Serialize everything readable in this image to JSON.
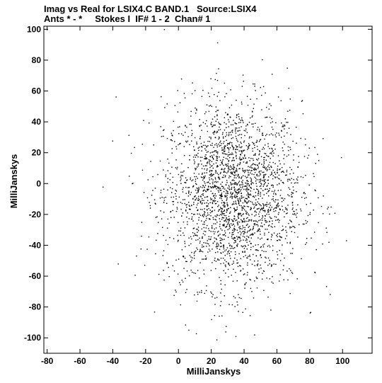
{
  "chart_data": {
    "type": "scatter",
    "title_lines": [
      "Imag vs Real for LSIX4.C BAND.1   Source:LSIX4",
      "Ants * - *     Stokes I  IF# 1 - 2  Chan# 1"
    ],
    "xlabel": "MilliJanskys",
    "ylabel": "MilliJanskys",
    "xlim": [
      -82,
      118
    ],
    "ylim": [
      -110,
      102
    ],
    "xticks": [
      -80,
      -60,
      -40,
      -20,
      0,
      20,
      40,
      60,
      80,
      100
    ],
    "yticks": [
      -100,
      -80,
      -60,
      -40,
      -20,
      0,
      20,
      40,
      60,
      80,
      100
    ],
    "grid": false,
    "marker_color": "#000000",
    "point_cloud": {
      "distribution": "normal",
      "count": 2600,
      "x_mean": 33,
      "x_std": 21,
      "y_mean": -7,
      "y_std": 30,
      "x_range": [
        -80,
        116
      ],
      "y_range": [
        -106,
        100
      ]
    }
  }
}
